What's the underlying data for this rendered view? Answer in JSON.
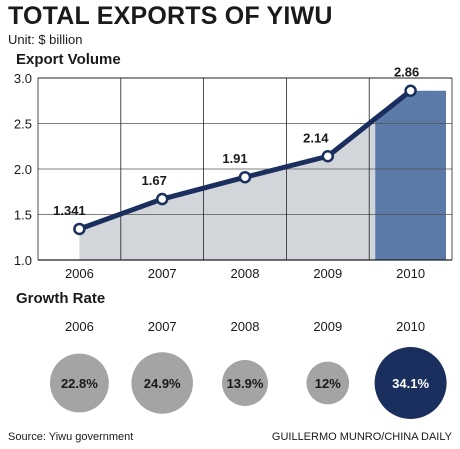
{
  "header": {
    "title": "TOTAL EXPORTS OF YIWU",
    "unit": "Unit: $ billion"
  },
  "sections": {
    "export_volume": "Export Volume",
    "growth_rate": "Growth Rate"
  },
  "footer": {
    "source": "Source: Yiwu government",
    "credit": "GUILLERMO MUNRO/CHINA DAILY"
  },
  "colors": {
    "line": "#1b2f5e",
    "area": "#d2d5d9",
    "highlight_bar": "#5b7aa8",
    "circle_gray": "#a4a4a4",
    "circle_highlight": "#1b2f5e"
  },
  "chart_data": [
    {
      "type": "line",
      "title": "Export Volume",
      "categories": [
        "2006",
        "2007",
        "2008",
        "2009",
        "2010"
      ],
      "values": [
        1.341,
        1.67,
        1.91,
        2.14,
        2.86
      ],
      "labels": [
        "1.341",
        "1.67",
        "1.91",
        "2.14",
        "2.86"
      ],
      "ylim": [
        1.0,
        3.0
      ],
      "yticks": [
        "1.0",
        "1.5",
        "2.0",
        "2.5",
        "3.0"
      ],
      "highlight_category": "2010",
      "grid": true
    },
    {
      "type": "bubble",
      "title": "Growth Rate",
      "categories": [
        "2006",
        "2007",
        "2008",
        "2009",
        "2010"
      ],
      "values": [
        22.8,
        24.9,
        13.9,
        12,
        34.1
      ],
      "labels": [
        "22.8%",
        "24.9%",
        "13.9%",
        "12%",
        "34.1%"
      ],
      "highlight_category": "2010"
    }
  ]
}
